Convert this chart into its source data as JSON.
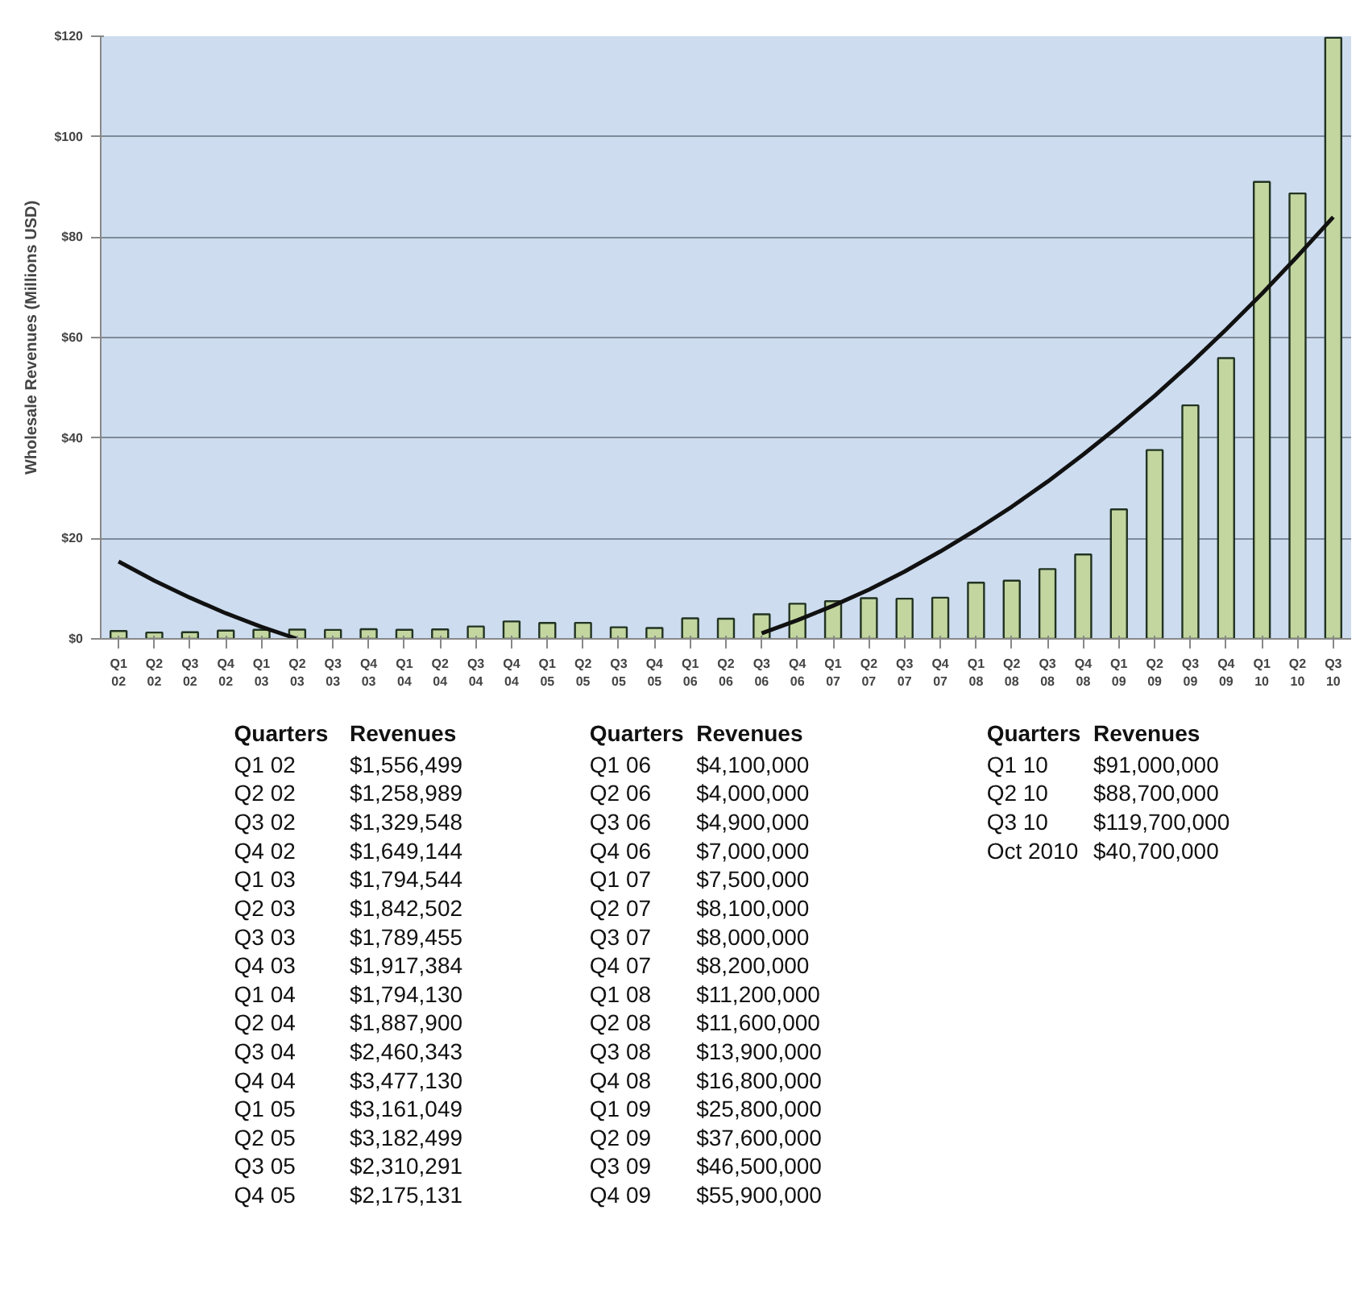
{
  "chart_data": {
    "type": "bar",
    "ylabel": "Wholesale Revenues (Millions USD)",
    "categories": [
      "Q1 02",
      "Q2 02",
      "Q3 02",
      "Q4 02",
      "Q1 03",
      "Q2 03",
      "Q3 03",
      "Q4 03",
      "Q1 04",
      "Q2 04",
      "Q3 04",
      "Q4 04",
      "Q1 05",
      "Q2 05",
      "Q3 05",
      "Q4 05",
      "Q1 06",
      "Q2 06",
      "Q3 06",
      "Q4 06",
      "Q1 07",
      "Q2 07",
      "Q3 07",
      "Q4 07",
      "Q1 08",
      "Q2 08",
      "Q3 08",
      "Q4 08",
      "Q1 09",
      "Q2 09",
      "Q3 09",
      "Q4 09",
      "Q1 10",
      "Q2 10",
      "Q3 10"
    ],
    "series": [
      {
        "color": "#c3d6a0",
        "values": [
          1.556499,
          1.258989,
          1.329548,
          1.649144,
          1.794544,
          1.842502,
          1.789455,
          1.917384,
          1.79413,
          1.8879,
          2.460343,
          3.47713,
          3.161049,
          3.182499,
          2.310291,
          2.175131,
          4.1,
          4.0,
          4.9,
          7.0,
          7.5,
          8.1,
          8.0,
          8.2,
          11.2,
          11.6,
          13.9,
          16.8,
          25.8,
          37.6,
          46.5,
          55.9,
          91.0,
          88.7,
          119.7
        ]
      },
      {
        "type": "line",
        "color": "#111111",
        "values": [
          15.4,
          11.6,
          8.2,
          5.1,
          2.4,
          0,
          null,
          null,
          null,
          null,
          null,
          null,
          null,
          null,
          null,
          null,
          null,
          null,
          1.1,
          3.7,
          6.6,
          9.8,
          13.4,
          17.4,
          21.7,
          26.3,
          31.3,
          36.7,
          42.4,
          48.4,
          54.8,
          61.6,
          68.7,
          76.2,
          84
        ]
      }
    ],
    "ylim": [
      0,
      120
    ],
    "yticks": [
      {
        "value": 0,
        "label": "$0"
      },
      {
        "value": 20,
        "label": "$20"
      },
      {
        "value": 40,
        "label": "$40"
      },
      {
        "value": 60,
        "label": "$60"
      },
      {
        "value": 80,
        "label": "$80"
      },
      {
        "value": 100,
        "label": "$100"
      },
      {
        "value": 120,
        "label": "$120"
      }
    ],
    "grid": "y",
    "annotations": [
      "Quarters",
      "Revenues",
      "$1,556,499",
      "$1,258,989",
      "$1,329,548",
      "$1,649,144",
      "$1,794,544",
      "$1,842,502",
      "$1,789,455",
      "$1,917,384",
      "$1,794,130",
      "$1,887,900",
      "$2,460,343",
      "$3,477,130",
      "$3,161,049",
      "$3,182,499",
      "$2,310,291",
      "$2,175,131",
      "$4,100,000",
      "$4,000,000",
      "$4,900,000",
      "$7,000,000",
      "$7,500,000",
      "$8,100,000",
      "$8,000,000",
      "$8,200,000",
      "$11,200,000",
      "$11,600,000",
      "$13,900,000",
      "$16,800,000",
      "$25,800,000",
      "$37,600,000",
      "$46,500,000",
      "$55,900,000",
      "$91,000,000",
      "$88,700,000",
      "$119,700,000",
      "Oct 2010",
      "$40,700,000"
    ]
  }
}
